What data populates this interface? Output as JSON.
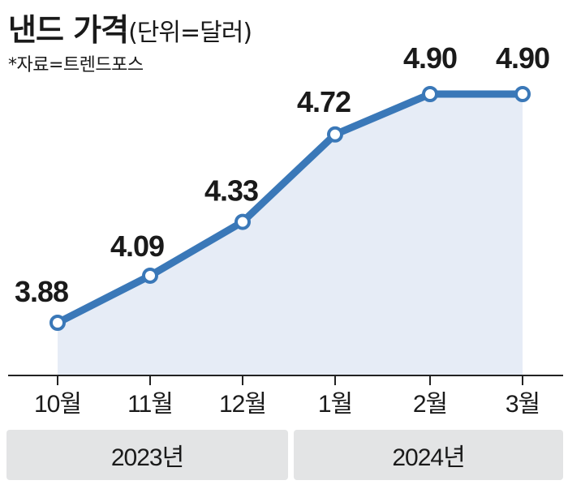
{
  "header": {
    "title": "낸드 가격",
    "unit": "(단위=달러)",
    "source": "*자료=트렌드포스"
  },
  "chart_data": {
    "type": "area",
    "title": "낸드 가격",
    "unit_label": "(단위=달러)",
    "categories": [
      "10월",
      "11월",
      "12월",
      "1월",
      "2월",
      "3월"
    ],
    "values": [
      3.88,
      4.09,
      4.33,
      4.72,
      4.9,
      4.9
    ],
    "data_labels": [
      "3.88",
      "4.09",
      "4.33",
      "4.72",
      "4.90",
      "4.90"
    ],
    "year_groups": [
      {
        "label": "2023년",
        "categories": [
          "10월",
          "11월",
          "12월"
        ]
      },
      {
        "label": "2024년",
        "categories": [
          "1월",
          "2월",
          "3월"
        ]
      }
    ],
    "ylim": [
      3.7,
      4.95
    ],
    "grid": false,
    "legend": "none",
    "colors": {
      "line": "#3a78b8",
      "fill": "#e6ecf6",
      "marker_fill": "#ffffff"
    }
  }
}
